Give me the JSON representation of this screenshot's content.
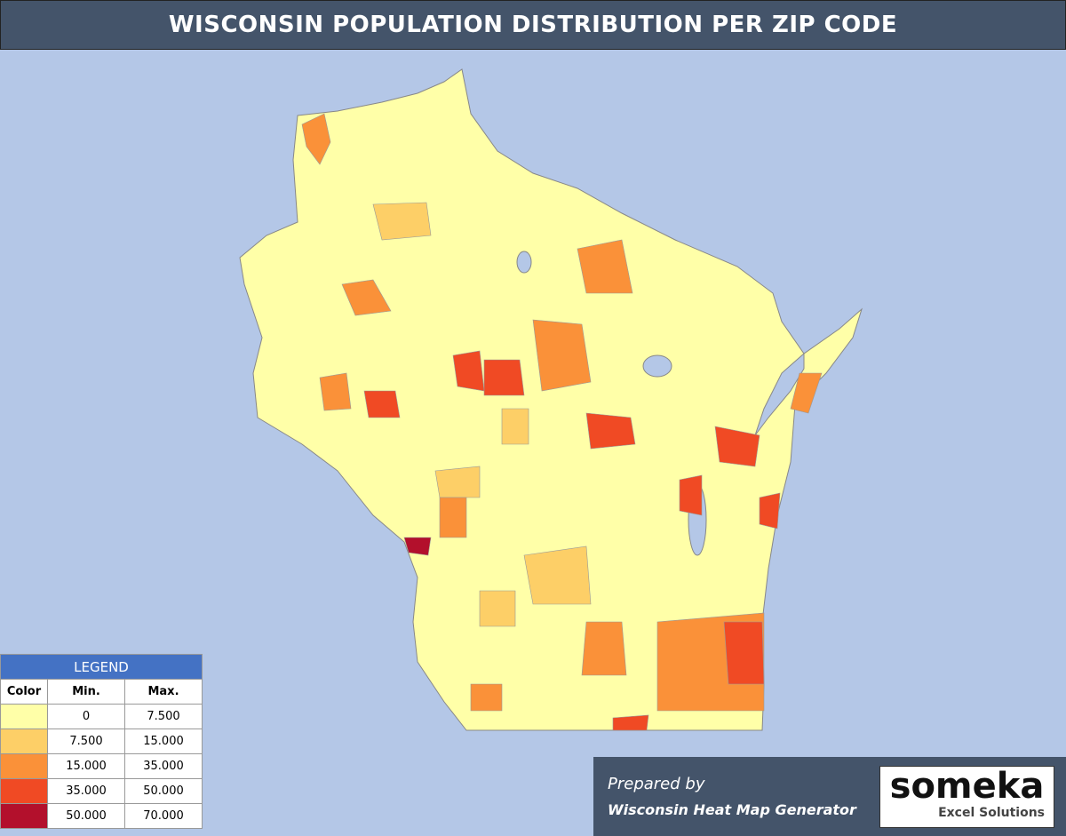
{
  "header": {
    "title": "WISCONSIN POPULATION DISTRIBUTION PER ZIP CODE"
  },
  "legend": {
    "title": "LEGEND",
    "columns": [
      "Color",
      "Min.",
      "Max."
    ],
    "rows": [
      {
        "color": "#ffffa8",
        "min": "0",
        "max": "7.500"
      },
      {
        "color": "#fdcf67",
        "min": "7.500",
        "max": "15.000"
      },
      {
        "color": "#fa9139",
        "min": "15.000",
        "max": "35.000"
      },
      {
        "color": "#f04a24",
        "min": "35.000",
        "max": "50.000"
      },
      {
        "color": "#b3102c",
        "min": "50.000",
        "max": "70.000"
      }
    ]
  },
  "footer": {
    "prepared": "Prepared by",
    "product": "Wisconsin Heat Map Generator"
  },
  "logo": {
    "name": "someka",
    "tagline": "Excel Solutions"
  }
}
